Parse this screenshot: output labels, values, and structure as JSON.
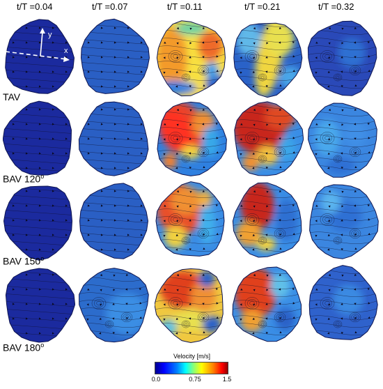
{
  "columns": [
    "t/T =0.04",
    "t/T =0.07",
    "t/T =0.11",
    "t/T =0.21",
    "t/T =0.32"
  ],
  "rows": [
    {
      "label": "TAV",
      "sup": ""
    },
    {
      "label": "BAV 120",
      "sup": "o"
    },
    {
      "label": "BAV 150",
      "sup": "o"
    },
    {
      "label": "BAV 180",
      "sup": "o"
    }
  ],
  "axes": {
    "x": "x",
    "y": "y"
  },
  "colorbar": {
    "title": "Velocity [m/s]",
    "ticks": [
      "0.0",
      "0.75",
      "1.5"
    ]
  },
  "colors": {
    "low": "#00008f",
    "mid": "#00ffff",
    "high": "#ff0000"
  }
}
